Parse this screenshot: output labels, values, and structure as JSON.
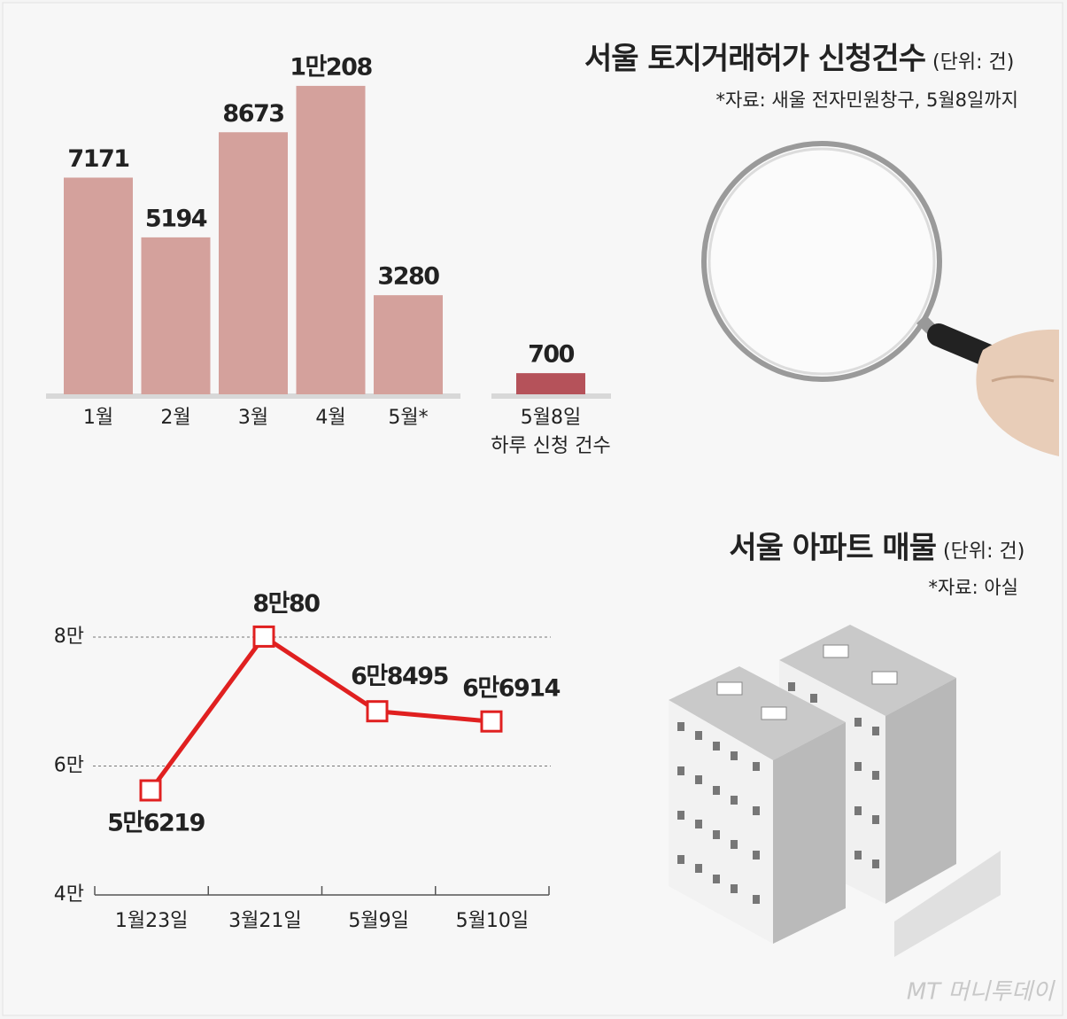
{
  "chart_data": [
    {
      "type": "bar",
      "title": "서울 토지거래허가 신청건수",
      "unit": "(단위: 건)",
      "source": "*자료: 새울 전자민원창구, 5월8일까지",
      "categories": [
        "1월",
        "2월",
        "3월",
        "4월",
        "5월*"
      ],
      "values": [
        7171,
        5194,
        8673,
        10208,
        3280
      ],
      "value_labels": [
        "7171",
        "5194",
        "8673",
        "1만208",
        "3280"
      ],
      "color": "#d4a19c"
    },
    {
      "type": "bar",
      "categories": [
        "5월8일"
      ],
      "x_label": "하루 신청 건수",
      "values": [
        700
      ],
      "color": "#b5525a"
    },
    {
      "type": "line",
      "title": "서울 아파트 매물",
      "unit": "(단위: 건)",
      "source": "*자료: 아실",
      "categories": [
        "1월23일",
        "3월21일",
        "5월9일",
        "5월10일"
      ],
      "values": [
        56219,
        80080,
        68495,
        66914
      ],
      "value_labels": [
        "5만6219",
        "8만80",
        "6만8495",
        "6만6914"
      ],
      "color": "#e02020",
      "ylim": [
        40000,
        80000
      ],
      "yticks": [
        {
          "value": 40000,
          "label": "4만"
        },
        {
          "value": 60000,
          "label": "6만"
        },
        {
          "value": 80000,
          "label": "8만"
        }
      ],
      "grid": true
    }
  ],
  "watermark": "MT 머니투데이"
}
